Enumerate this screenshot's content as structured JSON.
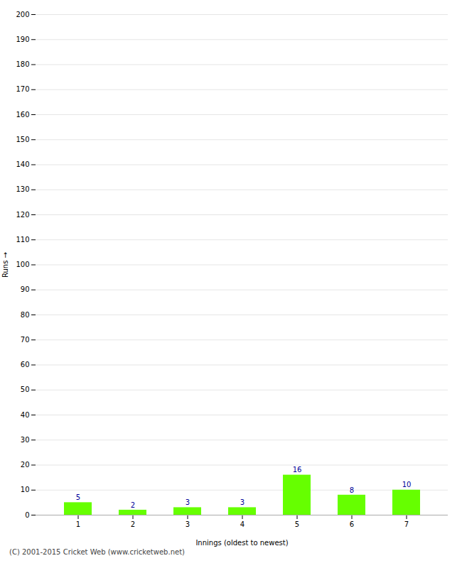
{
  "chart_data": {
    "type": "bar",
    "categories": [
      "1",
      "2",
      "3",
      "4",
      "5",
      "6",
      "7"
    ],
    "values": [
      5,
      2,
      3,
      3,
      16,
      8,
      10
    ],
    "color": "#66ff00",
    "xlabel": "Innings (oldest to newest)",
    "ylabel": "Runs",
    "ylim": [
      0,
      200
    ],
    "yticks": [
      0,
      10,
      20,
      30,
      40,
      50,
      60,
      70,
      80,
      90,
      100,
      110,
      120,
      130,
      140,
      150,
      160,
      170,
      180,
      190,
      200
    ],
    "grid": true,
    "data_labels": true,
    "footnote": "(C) 2001-2015 Cricket Web (www.cricketweb.net)"
  }
}
